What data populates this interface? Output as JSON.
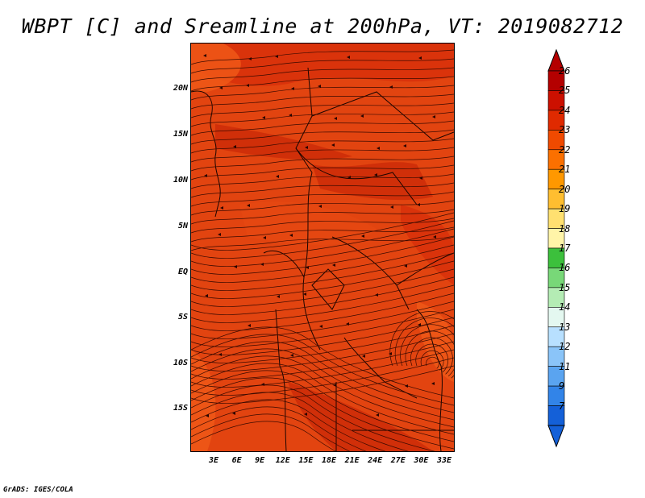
{
  "title": "WBPT [C] and Sreamline at 200hPa, VT: 2019082712",
  "credit": "GrADS: IGES/COLA",
  "lat_labels": [
    "20N",
    "15N",
    "10N",
    "5N",
    "EQ",
    "5S",
    "10S",
    "15S"
  ],
  "lon_labels": [
    "3E",
    "6E",
    "9E",
    "12E",
    "15E",
    "18E",
    "21E",
    "24E",
    "27E",
    "30E",
    "33E"
  ],
  "colorbar": {
    "labels": [
      "26",
      "25",
      "24",
      "23",
      "22",
      "21",
      "20",
      "19",
      "18",
      "17",
      "16",
      "15",
      "14",
      "13",
      "12",
      "11",
      "9",
      "7"
    ],
    "colors": [
      "#b40000",
      "#cc1000",
      "#e02a00",
      "#f04a00",
      "#fb7000",
      "#ff9800",
      "#ffbe30",
      "#ffe070",
      "#fff4a8",
      "#3cc03c",
      "#78d878",
      "#b4ecb4",
      "#e4f8f0",
      "#b8e0ff",
      "#8ac4f8",
      "#5aa4f0",
      "#3284e8",
      "#1460d8"
    ]
  },
  "map": {
    "field_colors": [
      "#d8300a",
      "#e64812",
      "#cc2a08",
      "#f05a18"
    ]
  }
}
